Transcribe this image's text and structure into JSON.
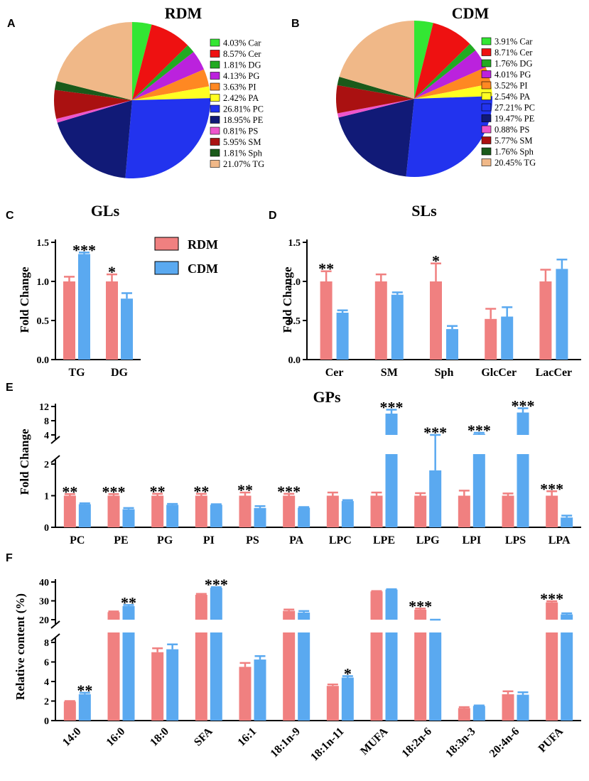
{
  "colors": {
    "rdm": "#f08080",
    "cdm": "#5aa9f0",
    "axis": "#000000"
  },
  "chart_data": [
    {
      "panel": "A",
      "type": "pie",
      "title": "RDM",
      "slices": [
        {
          "label": "Car",
          "value": 4.03,
          "text": "4.03%  Car",
          "color": "#33e633"
        },
        {
          "label": "Cer",
          "value": 8.57,
          "text": "8.57%  Cer",
          "color": "#ee1111"
        },
        {
          "label": "DG",
          "value": 1.81,
          "text": "1.81%  DG",
          "color": "#22aa22"
        },
        {
          "label": "PG",
          "value": 4.13,
          "text": "4.13%  PG",
          "color": "#bb22dd"
        },
        {
          "label": "PI",
          "value": 3.63,
          "text": "3.63%  PI",
          "color": "#ff8822"
        },
        {
          "label": "PA",
          "value": 2.42,
          "text": "2.42%  PA",
          "color": "#ffff22"
        },
        {
          "label": "PC",
          "value": 26.81,
          "text": "26.81%  PC",
          "color": "#2233ee"
        },
        {
          "label": "PE",
          "value": 18.95,
          "text": "18.95%  PE",
          "color": "#111a77"
        },
        {
          "label": "PS",
          "value": 0.81,
          "text": "0.81%  PS",
          "color": "#ee55cc"
        },
        {
          "label": "SM",
          "value": 5.95,
          "text": "5.95%  SM",
          "color": "#aa1111"
        },
        {
          "label": "Sph",
          "value": 1.81,
          "text": "1.81%  Sph",
          "color": "#1a5a1a"
        },
        {
          "label": "TG",
          "value": 21.07,
          "text": "21.07%  TG",
          "color": "#f0b888"
        }
      ]
    },
    {
      "panel": "B",
      "type": "pie",
      "title": "CDM",
      "slices": [
        {
          "label": "Car",
          "value": 3.91,
          "text": "3.91%  Car",
          "color": "#33e633"
        },
        {
          "label": "Cer",
          "value": 8.71,
          "text": "8.71%  Cer",
          "color": "#ee1111"
        },
        {
          "label": "DG",
          "value": 1.76,
          "text": "1.76%  DG",
          "color": "#22aa22"
        },
        {
          "label": "PG",
          "value": 4.01,
          "text": "4.01%  PG",
          "color": "#bb22dd"
        },
        {
          "label": "PI",
          "value": 3.52,
          "text": "3.52%  PI",
          "color": "#ff8822"
        },
        {
          "label": "PA",
          "value": 2.54,
          "text": "2.54%  PA",
          "color": "#ffff22"
        },
        {
          "label": "PC",
          "value": 27.21,
          "text": "27.21%  PC",
          "color": "#2233ee"
        },
        {
          "label": "PE",
          "value": 19.47,
          "text": "19.47%  PE",
          "color": "#111a77"
        },
        {
          "label": "PS",
          "value": 0.88,
          "text": "0.88%  PS",
          "color": "#ee55cc"
        },
        {
          "label": "SM",
          "value": 5.77,
          "text": "5.77%  SM",
          "color": "#aa1111"
        },
        {
          "label": "Sph",
          "value": 1.76,
          "text": "1.76%  Sph",
          "color": "#1a5a1a"
        },
        {
          "label": "TG",
          "value": 20.45,
          "text": "20.45%  TG",
          "color": "#f0b888"
        }
      ]
    },
    {
      "panel": "C",
      "type": "bar",
      "title": "GLs",
      "ylabel": "Fold Change",
      "categories": [
        "TG",
        "DG"
      ],
      "yticks": [
        0.0,
        0.5,
        1.0,
        1.5
      ],
      "yticklabels": [
        "0.0",
        "0.5",
        "1.0",
        "1.5"
      ],
      "ylim": [
        0,
        1.5
      ],
      "series": [
        {
          "name": "RDM",
          "values": [
            1.0,
            1.0
          ],
          "errors": [
            0.06,
            0.09
          ]
        },
        {
          "name": "CDM",
          "values": [
            1.35,
            0.78
          ],
          "errors": [
            0.02,
            0.07
          ]
        }
      ],
      "stars": [
        "***",
        "*"
      ],
      "star_on": [
        "CDM",
        "RDM"
      ]
    },
    {
      "panel": "D",
      "type": "bar",
      "title": "SLs",
      "ylabel": "Fold Change",
      "categories": [
        "Cer",
        "SM",
        "Sph",
        "GlcCer",
        "LacCer"
      ],
      "yticks": [
        0.0,
        0.5,
        1.0,
        1.5
      ],
      "yticklabels": [
        "0.0",
        "0.5",
        "1.0",
        "1.5"
      ],
      "ylim": [
        0,
        1.5
      ],
      "series": [
        {
          "name": "RDM",
          "values": [
            1.0,
            1.0,
            1.0,
            0.52,
            1.0
          ],
          "errors": [
            0.13,
            0.09,
            0.23,
            0.13,
            0.15
          ]
        },
        {
          "name": "CDM",
          "values": [
            0.6,
            0.83,
            0.39,
            0.55,
            1.16
          ],
          "errors": [
            0.03,
            0.03,
            0.04,
            0.12,
            0.12
          ]
        }
      ],
      "stars": [
        "**",
        "",
        "*",
        "",
        ""
      ],
      "star_on": [
        "RDM",
        "RDM",
        "RDM",
        "RDM",
        "RDM"
      ]
    },
    {
      "panel": "E",
      "type": "bar",
      "title": "GPs",
      "ylabel": "Fold Change",
      "broken_axis": true,
      "categories": [
        "PC",
        "PE",
        "PG",
        "PI",
        "PS",
        "PA",
        "LPC",
        "LPE",
        "LPG",
        "LPI",
        "LPS",
        "LPA"
      ],
      "yticks_lower": [
        0,
        1,
        2
      ],
      "yticks_upper": [
        4,
        8,
        12
      ],
      "yticklabels_lower": [
        "0",
        "1",
        "2"
      ],
      "yticklabels_upper": [
        "4",
        "8",
        "12"
      ],
      "series": [
        {
          "name": "RDM",
          "values": [
            1.0,
            1.0,
            1.0,
            1.0,
            1.0,
            1.0,
            1.0,
            1.0,
            1.0,
            1.0,
            1.0,
            1.0
          ],
          "errors": [
            0.05,
            0.05,
            0.06,
            0.06,
            0.1,
            0.06,
            0.1,
            0.1,
            0.08,
            0.16,
            0.07,
            0.14
          ]
        },
        {
          "name": "CDM",
          "values": [
            0.73,
            0.57,
            0.71,
            0.71,
            0.61,
            0.62,
            0.83,
            10.0,
            1.8,
            4.3,
            10.3,
            0.31
          ],
          "errors": [
            0.03,
            0.04,
            0.03,
            0.02,
            0.06,
            0.02,
            0.03,
            1.1,
            0.4,
            0.3,
            1.2,
            0.06
          ]
        }
      ],
      "stars": [
        "**",
        "***",
        "**",
        "**",
        "**",
        "***",
        "",
        "***",
        "***",
        "***",
        "***",
        "***"
      ],
      "star_on": [
        "RDM",
        "RDM",
        "RDM",
        "RDM",
        "RDM",
        "RDM",
        "RDM",
        "CDM",
        "CDM",
        "CDM",
        "CDM",
        "RDM"
      ]
    },
    {
      "panel": "F",
      "type": "bar",
      "ylabel": "Relative content (%)",
      "broken_axis": true,
      "categories": [
        "14:0",
        "16:0",
        "18:0",
        "SFA",
        "16:1",
        "18:1n-9",
        "18:1n-11",
        "MUFA",
        "18:2n-6",
        "18:3n-3",
        "20:4n-6",
        "PUFA"
      ],
      "yticks_lower": [
        0,
        2,
        4,
        6,
        8
      ],
      "yticks_upper": [
        20,
        30,
        40
      ],
      "yticklabels_lower": [
        "0",
        "2",
        "4",
        "6",
        "8"
      ],
      "yticklabels_upper": [
        "20",
        "30",
        "40"
      ],
      "series": [
        {
          "name": "RDM",
          "values": [
            1.95,
            24.0,
            7.0,
            33.2,
            5.5,
            24.7,
            3.55,
            35.0,
            25.3,
            1.28,
            2.7,
            29.2
          ],
          "errors": [
            0.05,
            0.4,
            0.4,
            0.5,
            0.4,
            0.7,
            0.15,
            0.2,
            0.6,
            0.1,
            0.3,
            0.6
          ]
        },
        {
          "name": "CDM",
          "values": [
            2.7,
            27.2,
            7.3,
            36.9,
            6.25,
            23.8,
            4.4,
            36.0,
            18.5,
            1.5,
            2.65,
            22.8
          ],
          "errors": [
            0.15,
            0.6,
            0.5,
            0.4,
            0.35,
            0.8,
            0.15,
            0.2,
            0.5,
            0.05,
            0.25,
            0.6
          ]
        }
      ],
      "stars": [
        "**",
        "**",
        "",
        "***",
        "",
        "",
        "*",
        "",
        "***",
        "",
        "",
        "***"
      ],
      "star_on": [
        "CDM",
        "CDM",
        "RDM",
        "CDM",
        "RDM",
        "RDM",
        "CDM",
        "RDM",
        "RDM",
        "RDM",
        "RDM",
        "RDM"
      ]
    }
  ],
  "legend": {
    "rdm": "RDM",
    "cdm": "CDM"
  }
}
